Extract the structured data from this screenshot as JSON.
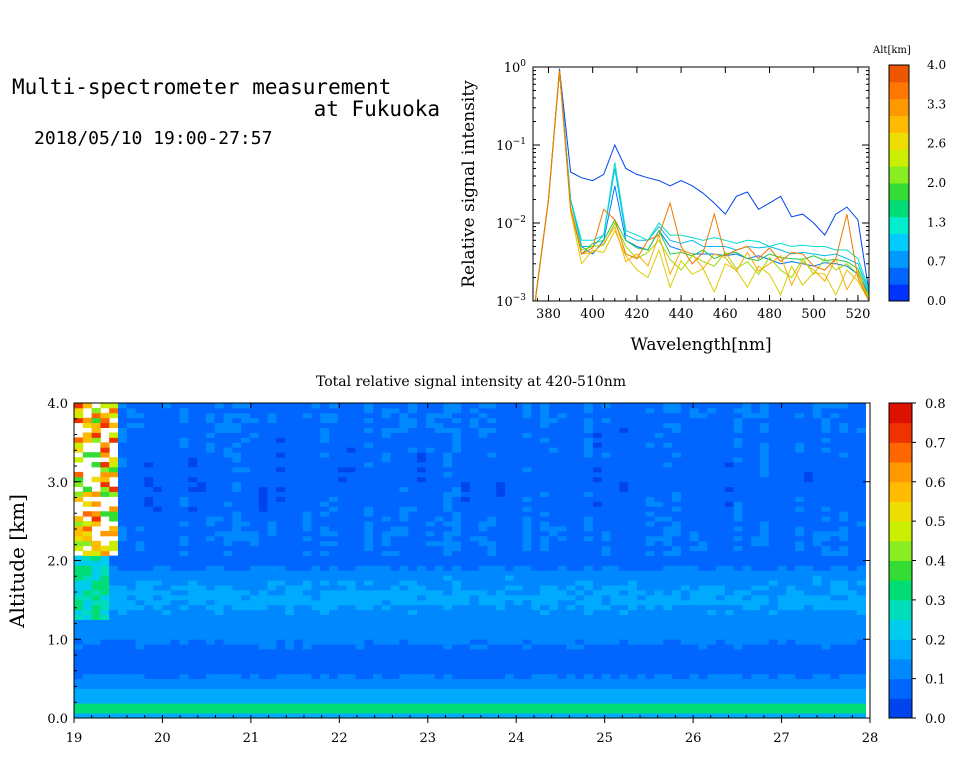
{
  "header": {
    "title_line1": "Multi-spectrometer measurement",
    "title_line2": "at Fukuoka",
    "datetime": "2018/05/10 19:00-27:57"
  },
  "chart_data": [
    {
      "type": "line",
      "ylabel": "Relative signal intensity",
      "xlabel": "Wavelength[nm]",
      "yscale": "log",
      "ylim": [
        0.001,
        1
      ],
      "xlim": [
        373,
        525
      ],
      "x_ticks": [
        "380",
        "400",
        "420",
        "440",
        "460",
        "480",
        "500",
        "520"
      ],
      "y_ticks": [
        {
          "base": "10",
          "exp": "0"
        },
        {
          "base": "10",
          "exp": "−1"
        },
        {
          "base": "10",
          "exp": "−2"
        },
        {
          "base": "10",
          "exp": "−3"
        }
      ],
      "colorbar": {
        "title": "Alt[km]",
        "ticks": [
          "4.0",
          "3.3",
          "2.6",
          "2.0",
          "1.3",
          "0.7",
          "0.0"
        ],
        "colors": [
          "#0033ff",
          "#0066ff",
          "#0099ff",
          "#00ccff",
          "#00eecc",
          "#00dd77",
          "#33dd33",
          "#88ee22",
          "#ccee00",
          "#eedd00",
          "#ffbb00",
          "#ff9900",
          "#ff7700",
          "#ee5500"
        ]
      },
      "x": [
        374,
        380,
        385,
        390,
        395,
        400,
        405,
        410,
        415,
        420,
        425,
        430,
        435,
        440,
        445,
        450,
        455,
        460,
        465,
        470,
        475,
        480,
        485,
        490,
        495,
        500,
        505,
        510,
        515,
        520,
        525
      ],
      "series": [
        {
          "color": "#0044ee",
          "values": [
            0.001,
            0.02,
            0.95,
            0.045,
            0.038,
            0.035,
            0.042,
            0.1,
            0.05,
            0.042,
            0.038,
            0.035,
            0.03,
            0.035,
            0.03,
            0.024,
            0.018,
            0.013,
            0.022,
            0.025,
            0.015,
            0.018,
            0.022,
            0.012,
            0.013,
            0.01,
            0.007,
            0.013,
            0.016,
            0.011,
            0.0013
          ]
        },
        {
          "color": "#0077ff",
          "values": [
            0.001,
            0.02,
            0.9,
            0.02,
            0.005,
            0.004,
            0.006,
            0.03,
            0.006,
            0.005,
            0.0045,
            0.008,
            0.005,
            0.0045,
            0.004,
            0.004,
            0.004,
            0.0038,
            0.004,
            0.0035,
            0.0038,
            0.0034,
            0.003,
            0.0032,
            0.003,
            0.0028,
            0.0031,
            0.003,
            0.0028,
            0.0022,
            0.0012
          ]
        },
        {
          "color": "#00bbee",
          "values": [
            0.001,
            0.02,
            0.9,
            0.02,
            0.005,
            0.005,
            0.007,
            0.05,
            0.007,
            0.006,
            0.006,
            0.009,
            0.006,
            0.0055,
            0.006,
            0.005,
            0.005,
            0.005,
            0.0045,
            0.005,
            0.0048,
            0.005,
            0.0045,
            0.004,
            0.0042,
            0.004,
            0.0038,
            0.004,
            0.0035,
            0.003,
            0.0013
          ]
        },
        {
          "color": "#00ddcc",
          "values": [
            0.001,
            0.02,
            0.9,
            0.02,
            0.006,
            0.006,
            0.007,
            0.06,
            0.008,
            0.007,
            0.006,
            0.01,
            0.007,
            0.007,
            0.0065,
            0.006,
            0.0065,
            0.006,
            0.0055,
            0.006,
            0.0058,
            0.005,
            0.0055,
            0.005,
            0.0052,
            0.005,
            0.005,
            0.0045,
            0.0045,
            0.0035,
            0.0014
          ]
        },
        {
          "color": "#22cc44",
          "values": [
            0.001,
            0.02,
            0.9,
            0.015,
            0.004,
            0.0055,
            0.006,
            0.011,
            0.006,
            0.0048,
            0.0045,
            0.008,
            0.004,
            0.0042,
            0.0038,
            0.0045,
            0.0035,
            0.004,
            0.0042,
            0.0035,
            0.0033,
            0.004,
            0.0036,
            0.0035,
            0.0034,
            0.0038,
            0.0033,
            0.0034,
            0.0032,
            0.0026,
            0.0012
          ]
        },
        {
          "color": "#99dd00",
          "values": [
            0.001,
            0.02,
            0.9,
            0.016,
            0.0045,
            0.005,
            0.0052,
            0.01,
            0.005,
            0.0035,
            0.0042,
            0.006,
            0.0034,
            0.0025,
            0.0038,
            0.0032,
            0.0028,
            0.0042,
            0.0026,
            0.0032,
            0.0022,
            0.0036,
            0.0025,
            0.002,
            0.0035,
            0.0022,
            0.0035,
            0.0025,
            0.003,
            0.0022,
            0.0011
          ]
        },
        {
          "color": "#ddcc00",
          "values": [
            0.001,
            0.02,
            0.9,
            0.014,
            0.003,
            0.0045,
            0.0042,
            0.008,
            0.0038,
            0.0025,
            0.002,
            0.0045,
            0.0015,
            0.0033,
            0.0022,
            0.0026,
            0.0013,
            0.003,
            0.0025,
            0.0015,
            0.0028,
            0.0022,
            0.0012,
            0.0028,
            0.0016,
            0.0023,
            0.0022,
            0.0012,
            0.0025,
            0.0018,
            0.001
          ]
        },
        {
          "color": "#ffaa00",
          "values": [
            0.001,
            0.02,
            0.9,
            0.015,
            0.004,
            0.0042,
            0.0055,
            0.009,
            0.0032,
            0.004,
            0.0028,
            0.007,
            0.0022,
            0.0045,
            0.004,
            0.0026,
            0.004,
            0.0036,
            0.0024,
            0.0042,
            0.0024,
            0.003,
            0.0038,
            0.0016,
            0.0032,
            0.0025,
            0.0018,
            0.0035,
            0.0014,
            0.0024,
            0.001
          ]
        },
        {
          "color": "#ee7700",
          "values": [
            0.001,
            0.02,
            0.9,
            0.016,
            0.004,
            0.0048,
            0.015,
            0.011,
            0.004,
            0.0035,
            0.006,
            0.007,
            0.018,
            0.005,
            0.003,
            0.0042,
            0.013,
            0.0038,
            0.0045,
            0.005,
            0.0035,
            0.0048,
            0.0032,
            0.0042,
            0.004,
            0.0028,
            0.0025,
            0.0035,
            0.013,
            0.002,
            0.001
          ]
        }
      ]
    },
    {
      "type": "heatmap",
      "title": "Total relative signal intensity at 420-510nm",
      "ylabel": "Altitude [km]",
      "xlabel": "",
      "xlim": [
        19,
        28
      ],
      "ylim": [
        0,
        4
      ],
      "x_ticks": [
        "19",
        "20",
        "21",
        "22",
        "23",
        "24",
        "25",
        "26",
        "27",
        "28"
      ],
      "y_ticks": [
        "0.0",
        "1.0",
        "2.0",
        "3.0",
        "4.0"
      ],
      "data_x_range": [
        19.0,
        27.95
      ],
      "colorbar": {
        "ticks": [
          "0.8",
          "0.7",
          "0.6",
          "0.5",
          "0.4",
          "0.3",
          "0.2",
          "0.1",
          "0.0"
        ],
        "range": [
          0,
          0.8
        ],
        "colors": [
          "#0044ee",
          "#0066ff",
          "#0088ff",
          "#00aaff",
          "#00ccee",
          "#00ddbb",
          "#00dd77",
          "#33dd33",
          "#88ee22",
          "#ccee00",
          "#eedd00",
          "#ffbb00",
          "#ff9900",
          "#ff6600",
          "#ee3300",
          "#dd1100"
        ]
      },
      "profile": [
        {
          "alt": 0.0,
          "value": 0.1
        },
        {
          "alt": 0.13,
          "value": 0.38
        },
        {
          "alt": 0.2,
          "value": 0.2
        },
        {
          "alt": 0.28,
          "value": 0.15
        },
        {
          "alt": 0.33,
          "value": 0.2
        },
        {
          "alt": 0.45,
          "value": 0.12
        },
        {
          "alt": 0.7,
          "value": 0.06
        },
        {
          "alt": 1.0,
          "value": 0.11
        },
        {
          "alt": 1.5,
          "value": 0.16
        },
        {
          "alt": 1.8,
          "value": 0.14
        },
        {
          "alt": 1.95,
          "value": 0.08
        },
        {
          "alt": 2.3,
          "value": 0.09
        },
        {
          "alt": 3.0,
          "value": 0.07
        },
        {
          "alt": 4.0,
          "value": 0.09
        }
      ]
    }
  ]
}
